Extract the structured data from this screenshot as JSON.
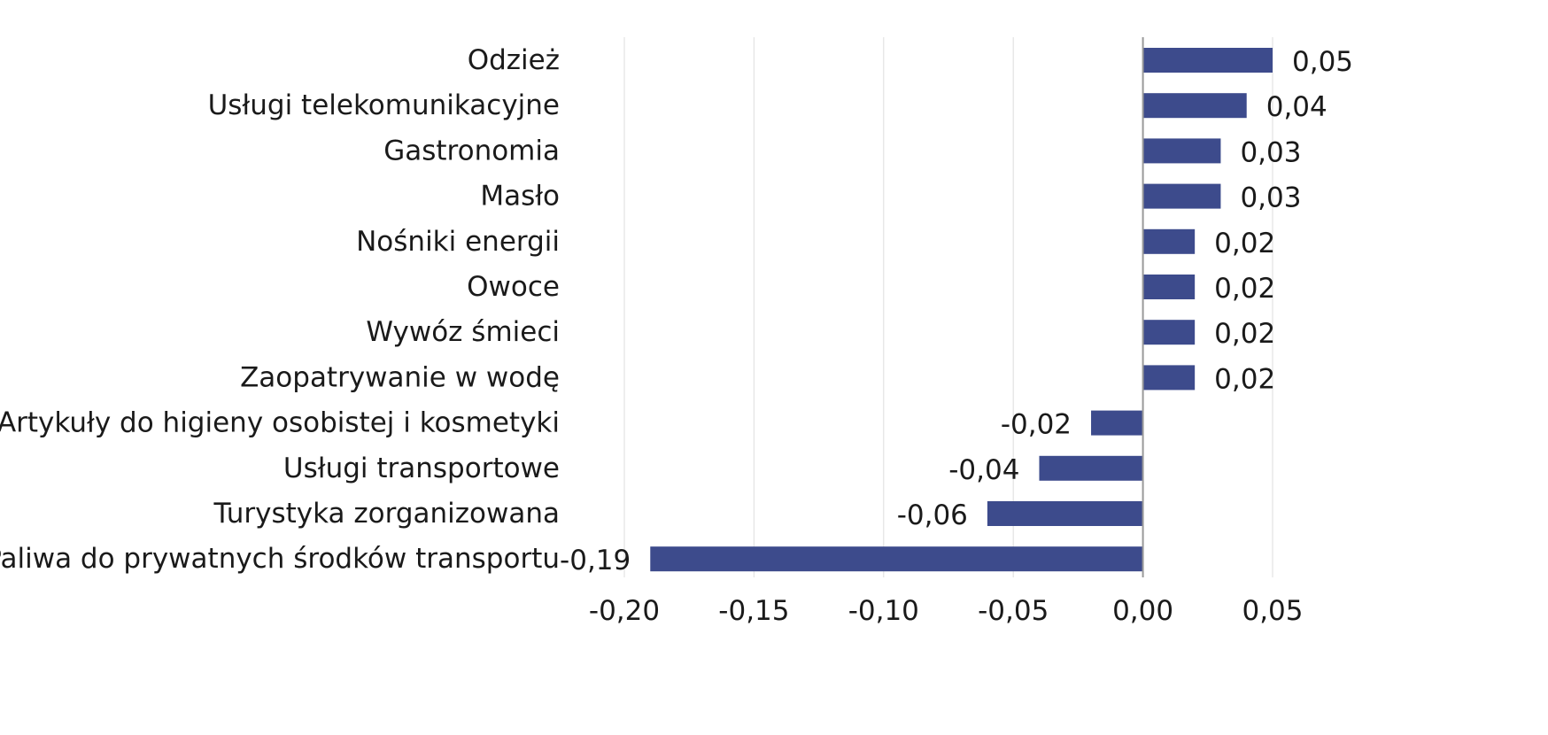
{
  "chart_data": {
    "type": "bar",
    "orientation": "horizontal",
    "title": "",
    "xlabel": "",
    "ylabel": "",
    "categories": [
      "Odzież",
      "Usługi telekomunikacyjne",
      "Gastronomia",
      "Masło",
      "Nośniki energii",
      "Owoce",
      "Wywóz śmieci",
      "Zaopatrywanie w wodę",
      "Artykuły do higieny osobistej i kosmetyki",
      "Usługi transportowe",
      "Turystyka zorganizowana",
      "Paliwa do prywatnych środków transportu"
    ],
    "values": [
      0.05,
      0.04,
      0.03,
      0.03,
      0.02,
      0.02,
      0.02,
      0.02,
      -0.02,
      -0.04,
      -0.06,
      -0.19
    ],
    "value_labels": [
      "0,05",
      "0,04",
      "0,03",
      "0,03",
      "0,02",
      "0,02",
      "0,02",
      "0,02",
      "-0,02",
      "-0,04",
      "-0,06",
      "-0,19"
    ],
    "xlim": [
      -0.2,
      0.05
    ],
    "x_ticks": [
      -0.2,
      -0.15,
      -0.1,
      -0.05,
      0.0,
      0.05
    ],
    "x_tick_labels": [
      "-0,20",
      "-0,15",
      "-0,10",
      "-0,05",
      "0,00",
      "0,05"
    ],
    "grid": "vertical",
    "legend": "none",
    "bar_color": "#3d4b8c"
  }
}
